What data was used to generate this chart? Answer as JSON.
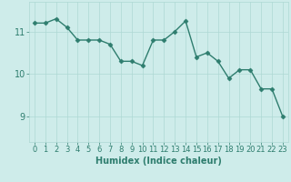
{
  "x": [
    0,
    1,
    2,
    3,
    4,
    5,
    6,
    7,
    8,
    9,
    10,
    11,
    12,
    13,
    14,
    15,
    16,
    17,
    18,
    19,
    20,
    21,
    22,
    23
  ],
  "y": [
    11.2,
    11.2,
    11.3,
    11.1,
    10.8,
    10.8,
    10.8,
    10.7,
    10.3,
    10.3,
    10.2,
    10.8,
    10.8,
    11.0,
    11.25,
    10.4,
    10.5,
    10.3,
    9.9,
    10.1,
    10.1,
    9.65,
    9.65,
    9.0
  ],
  "line_color": "#2e7d6e",
  "marker": "D",
  "marker_size": 2.5,
  "bg_color": "#ceecea",
  "grid_color": "#aed8d4",
  "xlabel": "Humidex (Indice chaleur)",
  "yticks": [
    9,
    10,
    11
  ],
  "ylim": [
    8.4,
    11.7
  ],
  "xlim": [
    -0.5,
    23.5
  ],
  "xlabel_fontsize": 7,
  "tick_fontsize": 6,
  "line_width": 1.0
}
